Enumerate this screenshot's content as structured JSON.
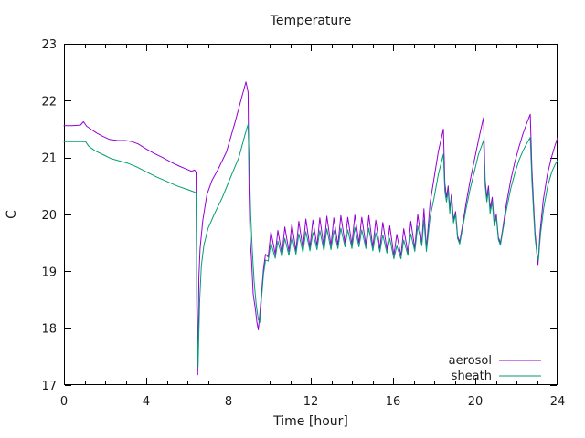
{
  "chart_data": {
    "type": "line",
    "title": "Temperature",
    "xlabel": "Time [hour]",
    "ylabel": "C",
    "xlim": [
      0,
      24
    ],
    "ylim": [
      17,
      23
    ],
    "xticks": [
      0,
      4,
      8,
      12,
      16,
      20,
      24
    ],
    "x_minor_tick_step": 1,
    "yticks": [
      17,
      18,
      19,
      20,
      21,
      22,
      23
    ],
    "grid": false,
    "legend_position": "inside bottom-right",
    "axis_color": "#000000",
    "series": [
      {
        "name": "aerosol",
        "color": "#9400d3",
        "points": [
          [
            0,
            21.56
          ],
          [
            0.4,
            21.56
          ],
          [
            0.8,
            21.57
          ],
          [
            0.95,
            21.63
          ],
          [
            1.1,
            21.55
          ],
          [
            1.3,
            21.5
          ],
          [
            1.6,
            21.43
          ],
          [
            1.9,
            21.37
          ],
          [
            2.2,
            21.32
          ],
          [
            2.6,
            21.3
          ],
          [
            3.0,
            21.3
          ],
          [
            3.3,
            21.28
          ],
          [
            3.6,
            21.24
          ],
          [
            4.0,
            21.15
          ],
          [
            4.4,
            21.07
          ],
          [
            4.8,
            21.0
          ],
          [
            5.2,
            20.92
          ],
          [
            5.6,
            20.85
          ],
          [
            6.0,
            20.79
          ],
          [
            6.2,
            20.76
          ],
          [
            6.35,
            20.78
          ],
          [
            6.42,
            20.74
          ],
          [
            6.46,
            18.4
          ],
          [
            6.5,
            17.18
          ],
          [
            6.56,
            18.9
          ],
          [
            6.62,
            19.4
          ],
          [
            6.75,
            19.9
          ],
          [
            6.95,
            20.35
          ],
          [
            7.2,
            20.6
          ],
          [
            7.5,
            20.8
          ],
          [
            7.9,
            21.1
          ],
          [
            8.3,
            21.6
          ],
          [
            8.6,
            22.0
          ],
          [
            8.85,
            22.33
          ],
          [
            8.95,
            22.15
          ],
          [
            9.0,
            20.4
          ],
          [
            9.05,
            19.6
          ],
          [
            9.12,
            19.2
          ],
          [
            9.2,
            18.6
          ],
          [
            9.3,
            18.35
          ],
          [
            9.38,
            18.1
          ],
          [
            9.45,
            17.97
          ],
          [
            9.52,
            18.25
          ],
          [
            9.6,
            18.6
          ],
          [
            9.7,
            19.05
          ],
          [
            9.8,
            19.3
          ],
          [
            9.93,
            19.25
          ],
          [
            10.06,
            19.7
          ],
          [
            10.27,
            19.3
          ],
          [
            10.4,
            19.72
          ],
          [
            10.6,
            19.3
          ],
          [
            10.74,
            19.78
          ],
          [
            10.94,
            19.35
          ],
          [
            11.08,
            19.83
          ],
          [
            11.28,
            19.36
          ],
          [
            11.42,
            19.88
          ],
          [
            11.62,
            19.4
          ],
          [
            11.76,
            19.92
          ],
          [
            11.96,
            19.42
          ],
          [
            12.1,
            19.9
          ],
          [
            12.3,
            19.45
          ],
          [
            12.44,
            19.94
          ],
          [
            12.64,
            19.42
          ],
          [
            12.78,
            19.97
          ],
          [
            12.98,
            19.45
          ],
          [
            13.12,
            19.94
          ],
          [
            13.32,
            19.46
          ],
          [
            13.46,
            19.98
          ],
          [
            13.66,
            19.5
          ],
          [
            13.8,
            19.95
          ],
          [
            14.0,
            19.47
          ],
          [
            14.14,
            19.99
          ],
          [
            14.34,
            19.5
          ],
          [
            14.48,
            19.95
          ],
          [
            14.68,
            19.46
          ],
          [
            14.82,
            19.98
          ],
          [
            15.02,
            19.42
          ],
          [
            15.16,
            19.9
          ],
          [
            15.36,
            19.4
          ],
          [
            15.5,
            19.86
          ],
          [
            15.7,
            19.38
          ],
          [
            15.84,
            19.8
          ],
          [
            16.04,
            19.28
          ],
          [
            16.18,
            19.65
          ],
          [
            16.38,
            19.27
          ],
          [
            16.52,
            19.75
          ],
          [
            16.72,
            19.33
          ],
          [
            16.86,
            19.88
          ],
          [
            17.06,
            19.4
          ],
          [
            17.2,
            20.0
          ],
          [
            17.4,
            19.5
          ],
          [
            17.5,
            20.1
          ],
          [
            17.62,
            19.4
          ],
          [
            17.8,
            20.2
          ],
          [
            18.0,
            20.65
          ],
          [
            18.2,
            21.1
          ],
          [
            18.45,
            21.5
          ],
          [
            18.52,
            20.55
          ],
          [
            18.6,
            20.3
          ],
          [
            18.68,
            20.5
          ],
          [
            18.76,
            20.1
          ],
          [
            18.84,
            20.35
          ],
          [
            18.94,
            19.9
          ],
          [
            19.04,
            20.05
          ],
          [
            19.14,
            19.62
          ],
          [
            19.24,
            19.52
          ],
          [
            19.35,
            19.75
          ],
          [
            19.55,
            20.2
          ],
          [
            19.75,
            20.6
          ],
          [
            19.95,
            20.95
          ],
          [
            20.15,
            21.3
          ],
          [
            20.3,
            21.55
          ],
          [
            20.4,
            21.7
          ],
          [
            20.48,
            20.6
          ],
          [
            20.56,
            20.3
          ],
          [
            20.64,
            20.5
          ],
          [
            20.72,
            20.1
          ],
          [
            20.82,
            20.3
          ],
          [
            20.92,
            19.85
          ],
          [
            21.02,
            20.0
          ],
          [
            21.12,
            19.6
          ],
          [
            21.22,
            19.5
          ],
          [
            21.32,
            19.72
          ],
          [
            21.52,
            20.2
          ],
          [
            21.72,
            20.6
          ],
          [
            21.92,
            20.92
          ],
          [
            22.12,
            21.18
          ],
          [
            22.32,
            21.42
          ],
          [
            22.52,
            21.62
          ],
          [
            22.67,
            21.76
          ],
          [
            22.75,
            20.8
          ],
          [
            22.83,
            20.2
          ],
          [
            22.9,
            19.7
          ],
          [
            23.0,
            19.3
          ],
          [
            23.05,
            19.12
          ],
          [
            23.15,
            19.7
          ],
          [
            23.3,
            20.25
          ],
          [
            23.5,
            20.7
          ],
          [
            23.7,
            21.0
          ],
          [
            23.85,
            21.18
          ],
          [
            24,
            21.35
          ]
        ]
      },
      {
        "name": "sheath",
        "color": "#009e73",
        "points": [
          [
            0,
            21.28
          ],
          [
            0.5,
            21.28
          ],
          [
            1.05,
            21.28
          ],
          [
            1.2,
            21.2
          ],
          [
            1.5,
            21.12
          ],
          [
            1.9,
            21.05
          ],
          [
            2.3,
            20.98
          ],
          [
            2.7,
            20.94
          ],
          [
            3.1,
            20.9
          ],
          [
            3.5,
            20.84
          ],
          [
            4.0,
            20.75
          ],
          [
            4.5,
            20.66
          ],
          [
            5.0,
            20.58
          ],
          [
            5.5,
            20.5
          ],
          [
            6.0,
            20.44
          ],
          [
            6.3,
            20.4
          ],
          [
            6.42,
            20.38
          ],
          [
            6.46,
            18.6
          ],
          [
            6.52,
            17.32
          ],
          [
            6.6,
            18.5
          ],
          [
            6.68,
            19.1
          ],
          [
            6.8,
            19.45
          ],
          [
            7.0,
            19.75
          ],
          [
            7.3,
            20.0
          ],
          [
            7.7,
            20.3
          ],
          [
            8.1,
            20.65
          ],
          [
            8.5,
            21.0
          ],
          [
            8.8,
            21.4
          ],
          [
            8.95,
            21.58
          ],
          [
            9.02,
            20.8
          ],
          [
            9.08,
            20.0
          ],
          [
            9.15,
            19.4
          ],
          [
            9.25,
            18.8
          ],
          [
            9.35,
            18.4
          ],
          [
            9.45,
            18.15
          ],
          [
            9.52,
            18.1
          ],
          [
            9.6,
            18.5
          ],
          [
            9.7,
            18.95
          ],
          [
            9.8,
            19.2
          ],
          [
            9.93,
            19.18
          ],
          [
            10.06,
            19.5
          ],
          [
            10.27,
            19.23
          ],
          [
            10.4,
            19.53
          ],
          [
            10.6,
            19.25
          ],
          [
            10.74,
            19.58
          ],
          [
            10.94,
            19.28
          ],
          [
            11.08,
            19.62
          ],
          [
            11.28,
            19.3
          ],
          [
            11.42,
            19.66
          ],
          [
            11.62,
            19.33
          ],
          [
            11.76,
            19.7
          ],
          [
            11.96,
            19.36
          ],
          [
            12.1,
            19.68
          ],
          [
            12.3,
            19.38
          ],
          [
            12.44,
            19.72
          ],
          [
            12.64,
            19.36
          ],
          [
            12.78,
            19.75
          ],
          [
            12.98,
            19.38
          ],
          [
            13.12,
            19.72
          ],
          [
            13.32,
            19.4
          ],
          [
            13.46,
            19.76
          ],
          [
            13.66,
            19.43
          ],
          [
            13.8,
            19.73
          ],
          [
            14.0,
            19.4
          ],
          [
            14.14,
            19.77
          ],
          [
            14.34,
            19.43
          ],
          [
            14.48,
            19.73
          ],
          [
            14.68,
            19.4
          ],
          [
            14.82,
            19.76
          ],
          [
            15.02,
            19.36
          ],
          [
            15.16,
            19.68
          ],
          [
            15.36,
            19.34
          ],
          [
            15.5,
            19.64
          ],
          [
            15.7,
            19.32
          ],
          [
            15.84,
            19.58
          ],
          [
            16.04,
            19.22
          ],
          [
            16.18,
            19.45
          ],
          [
            16.38,
            19.22
          ],
          [
            16.52,
            19.55
          ],
          [
            16.72,
            19.28
          ],
          [
            16.86,
            19.66
          ],
          [
            17.06,
            19.35
          ],
          [
            17.2,
            19.8
          ],
          [
            17.4,
            19.45
          ],
          [
            17.5,
            19.9
          ],
          [
            17.62,
            19.35
          ],
          [
            17.8,
            19.95
          ],
          [
            18.0,
            20.3
          ],
          [
            18.2,
            20.7
          ],
          [
            18.45,
            21.06
          ],
          [
            18.52,
            20.4
          ],
          [
            18.6,
            20.22
          ],
          [
            18.68,
            20.42
          ],
          [
            18.76,
            20.02
          ],
          [
            18.84,
            20.28
          ],
          [
            18.94,
            19.85
          ],
          [
            19.04,
            20.0
          ],
          [
            19.14,
            19.58
          ],
          [
            19.24,
            19.48
          ],
          [
            19.35,
            19.7
          ],
          [
            19.55,
            20.1
          ],
          [
            19.75,
            20.45
          ],
          [
            19.95,
            20.75
          ],
          [
            20.15,
            21.05
          ],
          [
            20.3,
            21.2
          ],
          [
            20.4,
            21.3
          ],
          [
            20.48,
            20.5
          ],
          [
            20.56,
            20.22
          ],
          [
            20.64,
            20.42
          ],
          [
            20.72,
            20.02
          ],
          [
            20.82,
            20.22
          ],
          [
            20.92,
            19.8
          ],
          [
            21.02,
            19.95
          ],
          [
            21.12,
            19.56
          ],
          [
            21.22,
            19.46
          ],
          [
            21.32,
            19.68
          ],
          [
            21.52,
            20.1
          ],
          [
            21.72,
            20.45
          ],
          [
            21.92,
            20.72
          ],
          [
            22.12,
            20.95
          ],
          [
            22.32,
            21.12
          ],
          [
            22.52,
            21.26
          ],
          [
            22.67,
            21.35
          ],
          [
            22.75,
            20.6
          ],
          [
            22.83,
            20.05
          ],
          [
            22.9,
            19.6
          ],
          [
            23.0,
            19.28
          ],
          [
            23.07,
            19.2
          ],
          [
            23.17,
            19.65
          ],
          [
            23.32,
            20.1
          ],
          [
            23.52,
            20.5
          ],
          [
            23.72,
            20.75
          ],
          [
            23.87,
            20.87
          ],
          [
            24,
            20.95
          ]
        ]
      }
    ]
  }
}
